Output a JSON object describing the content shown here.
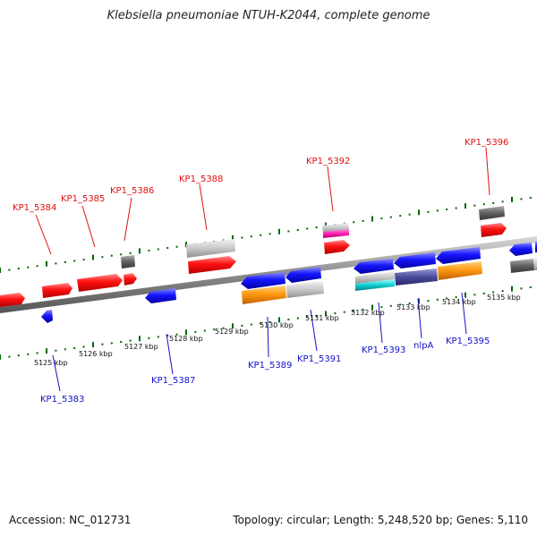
{
  "title": "Klebsiella pneumoniae NTUH-K2044, complete genome",
  "footer": {
    "accession": "Accession: NC_012731",
    "info": "Topology: circular; Length: 5,248,520 bp; Genes: 5,110"
  },
  "colors": {
    "forward": "#ff0000",
    "reverse": "#0000ee",
    "backbone": "#888888",
    "tick": "#006600"
  },
  "ticks": [
    "5125 kbp",
    "5126 kbp",
    "5127 kbp",
    "5128 kbp",
    "5129 kbp",
    "5130 kbp",
    "5131 kbp",
    "5132 kbp",
    "5133 kbp",
    "5134 kbp",
    "5135 kbp"
  ],
  "top_genes": [
    "KP1_5384",
    "KP1_5385",
    "KP1_5386",
    "KP1_5388",
    "KP1_5392",
    "KP1_5396"
  ],
  "bottom_genes": [
    "KP1_5383",
    "KP1_5387",
    "KP1_5389",
    "KP1_5391",
    "KP1_5393",
    "nlpA",
    "KP1_5395"
  ]
}
